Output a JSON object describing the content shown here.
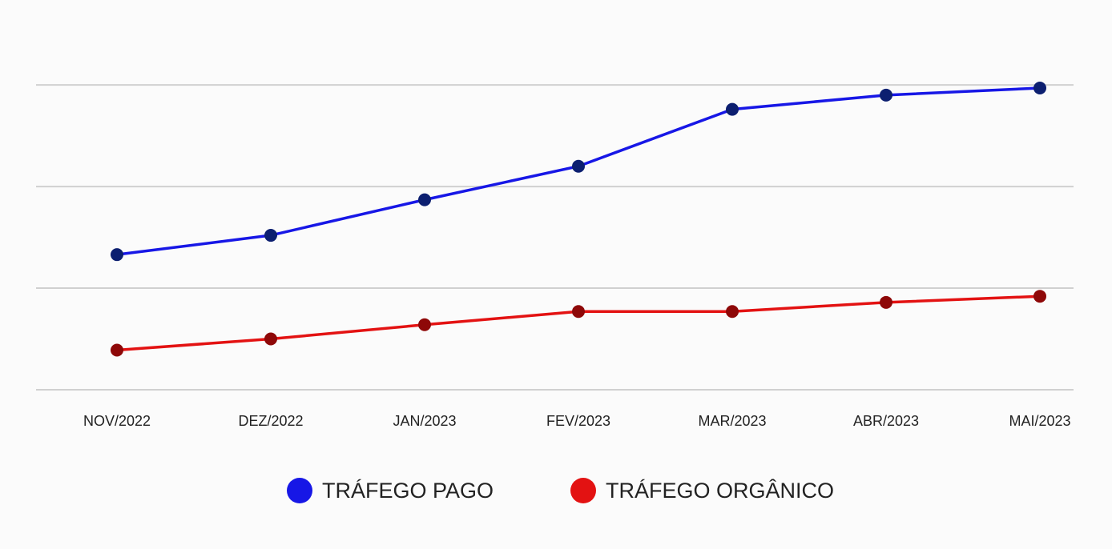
{
  "chart_data": {
    "type": "line",
    "categories": [
      "NOV/2022",
      "DEZ/2022",
      "JAN/2023",
      "FEV/2023",
      "MAR/2023",
      "ABR/2023",
      "MAI/2023"
    ],
    "series": [
      {
        "name": "TRÁFEGO PAGO",
        "color": "#1717e6",
        "marker_color": "#0c1f70",
        "values": [
          1.33,
          1.52,
          1.87,
          2.2,
          2.76,
          2.9,
          2.97
        ]
      },
      {
        "name": "TRÁFEGO ORGÂNICO",
        "color": "#e31212",
        "marker_color": "#8e0808",
        "values": [
          0.39,
          0.5,
          0.64,
          0.77,
          0.77,
          0.86,
          0.92
        ]
      }
    ],
    "ylim": [
      0,
      3.6
    ],
    "yticks": [
      0,
      1,
      2,
      3
    ],
    "grid": true,
    "show_ytick_labels": false,
    "legend": "bottom"
  }
}
